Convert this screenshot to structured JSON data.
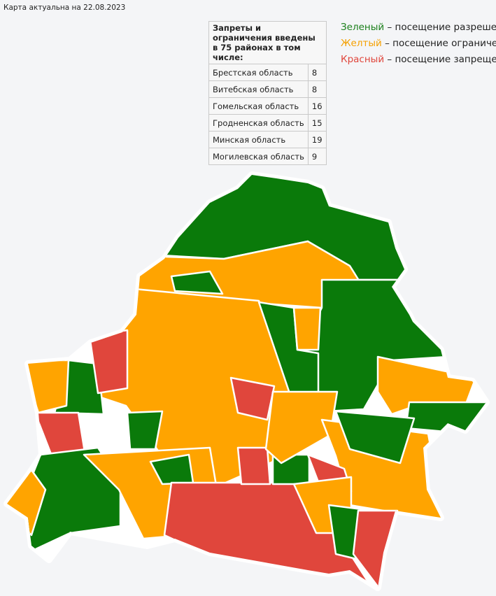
{
  "caption": "Карта актуальна на 22.08.2023",
  "table": {
    "header": "Запреты и ограничения введены в 75 районах в том числе:",
    "rows": [
      [
        "Брестская область",
        8
      ],
      [
        "Витебская область",
        8
      ],
      [
        "Гомельская область",
        16
      ],
      [
        "Гродненская область",
        15
      ],
      [
        "Минская область",
        19
      ],
      [
        "Могилевская область",
        9
      ]
    ]
  },
  "legend": [
    {
      "label": "Зеленый",
      "description": "– посещение разрешено",
      "color": "#1a7f1a"
    },
    {
      "label": "Желтый",
      "description": "– посещение ограничено",
      "color": "#f5a000"
    },
    {
      "label": "Красный",
      "description": "– посещение запрещено",
      "color": "#e0463c"
    }
  ]
}
